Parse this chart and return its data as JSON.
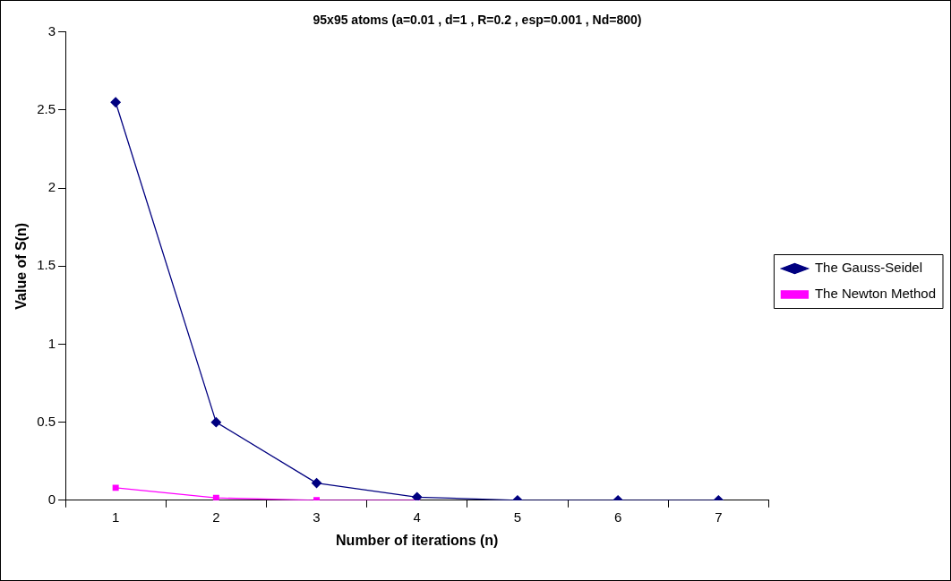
{
  "chart_data": {
    "type": "line",
    "title": "95x95 atoms (a=0.01 , d=1 , R=0.2 , esp=0.001 , Nd=800)",
    "xlabel": "Number of iterations (n)",
    "ylabel": "Value of S(n)",
    "categories": [
      "1",
      "2",
      "3",
      "4",
      "5",
      "6",
      "7"
    ],
    "series": [
      {
        "name": "The Gauss-Seidel",
        "color": "#000080",
        "marker": "diamond",
        "values": [
          2.55,
          0.5,
          0.11,
          0.02,
          0,
          0,
          0
        ]
      },
      {
        "name": "The Newton Method",
        "color": "#ff00ff",
        "marker": "square",
        "values": [
          0.08,
          0.015,
          0,
          0,
          null,
          null,
          null
        ]
      }
    ],
    "ylim": [
      0,
      3
    ],
    "yticks": [
      0,
      0.5,
      1,
      1.5,
      2,
      2.5,
      3
    ],
    "grid": false,
    "legend": "right",
    "line_style": "solid"
  }
}
